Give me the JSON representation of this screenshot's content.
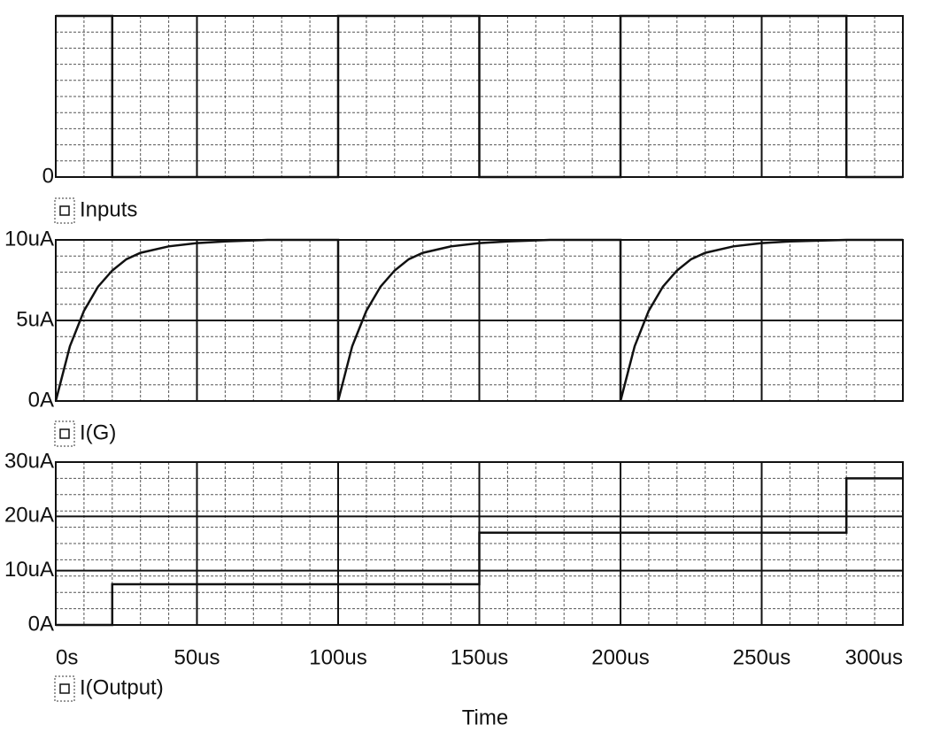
{
  "chart_data": [
    {
      "type": "line",
      "xlim": [
        0,
        300
      ],
      "ylim": [
        0,
        1
      ],
      "yticks": [
        0
      ],
      "x": [
        0,
        20,
        20,
        100,
        100,
        150,
        150,
        200,
        200,
        280,
        280,
        300
      ],
      "series": [
        {
          "name": "Inputs",
          "color": "#111111",
          "values": [
            1,
            1,
            0,
            0,
            1,
            1,
            0,
            0,
            1,
            1,
            0,
            0
          ]
        }
      ]
    },
    {
      "type": "line",
      "xlim": [
        0,
        300
      ],
      "ylim": [
        0,
        10
      ],
      "yticks": [
        {
          "value": 0,
          "label": "0A"
        },
        {
          "value": 5,
          "label": "5uA"
        },
        {
          "value": 10,
          "label": "10uA"
        }
      ],
      "x": [
        0,
        5,
        10,
        15,
        20,
        25,
        30,
        40,
        50,
        60,
        75,
        100,
        100,
        105,
        110,
        115,
        120,
        125,
        130,
        140,
        150,
        160,
        175,
        200,
        200,
        205,
        210,
        215,
        220,
        225,
        230,
        240,
        250,
        260,
        280,
        300
      ],
      "series": [
        {
          "name": "I(G)",
          "color": "#111111",
          "values": [
            0,
            3.4,
            5.6,
            7.1,
            8.1,
            8.8,
            9.2,
            9.6,
            9.8,
            9.9,
            10,
            10,
            0,
            3.4,
            5.6,
            7.1,
            8.1,
            8.8,
            9.2,
            9.6,
            9.8,
            9.9,
            10,
            10,
            0,
            3.4,
            5.6,
            7.1,
            8.1,
            8.8,
            9.2,
            9.6,
            9.8,
            9.9,
            10,
            10
          ]
        }
      ]
    },
    {
      "type": "line",
      "xlim": [
        0,
        300
      ],
      "ylim": [
        0,
        30
      ],
      "yticks": [
        {
          "value": 0,
          "label": "0A"
        },
        {
          "value": 10,
          "label": "10uA"
        },
        {
          "value": 20,
          "label": "20uA"
        },
        {
          "value": 30,
          "label": "30uA"
        }
      ],
      "xticks": [
        {
          "value": 0,
          "label": "0s"
        },
        {
          "value": 50,
          "label": "50us"
        },
        {
          "value": 100,
          "label": "100us"
        },
        {
          "value": 150,
          "label": "150us"
        },
        {
          "value": 200,
          "label": "200us"
        },
        {
          "value": 250,
          "label": "250us"
        },
        {
          "value": 300,
          "label": "300us"
        }
      ],
      "xlabel": "Time",
      "x": [
        0,
        20,
        20,
        150,
        150,
        280,
        280,
        300
      ],
      "series": [
        {
          "name": "I(Output)",
          "color": "#111111",
          "values": [
            0,
            0,
            7.5,
            7.5,
            17,
            17,
            27,
            27
          ]
        }
      ]
    }
  ]
}
